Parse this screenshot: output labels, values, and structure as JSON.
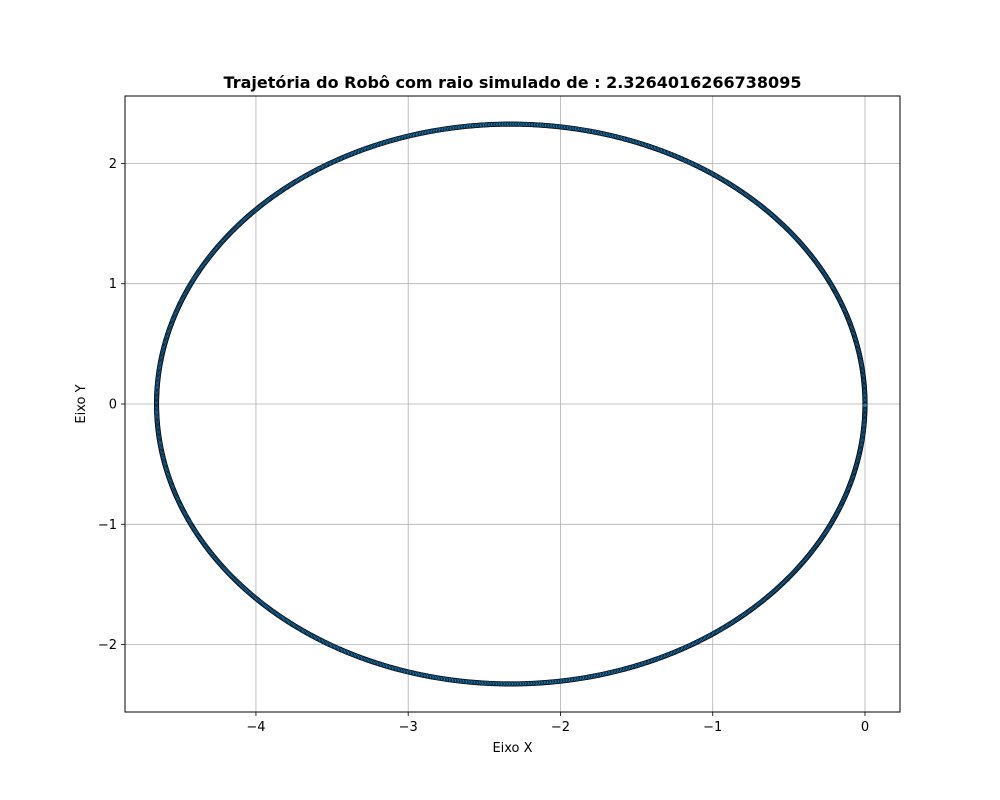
{
  "chart_data": {
    "type": "scatter",
    "title": "Trajetória do Robô com raio simulado de : 2.3264016266738095",
    "xlabel": "Eixo X",
    "ylabel": "Eixo Y",
    "xlim": [
      -4.86,
      0.23
    ],
    "ylim": [
      -2.56,
      2.56
    ],
    "xticks": [
      -4,
      -3,
      -2,
      -1,
      0
    ],
    "yticks": [
      -2,
      -1,
      0,
      1,
      2
    ],
    "xtick_labels": [
      "−4",
      "−3",
      "−2",
      "−1",
      "0"
    ],
    "ytick_labels": [
      "−2",
      "−1",
      "0",
      "1",
      "2"
    ],
    "grid": true,
    "series": [
      {
        "shape": "circle",
        "center": [
          -2.3264,
          0
        ],
        "radius": 2.3264016266738095,
        "marker_color": "#1f77b4",
        "edge_color": "#000000"
      }
    ]
  }
}
